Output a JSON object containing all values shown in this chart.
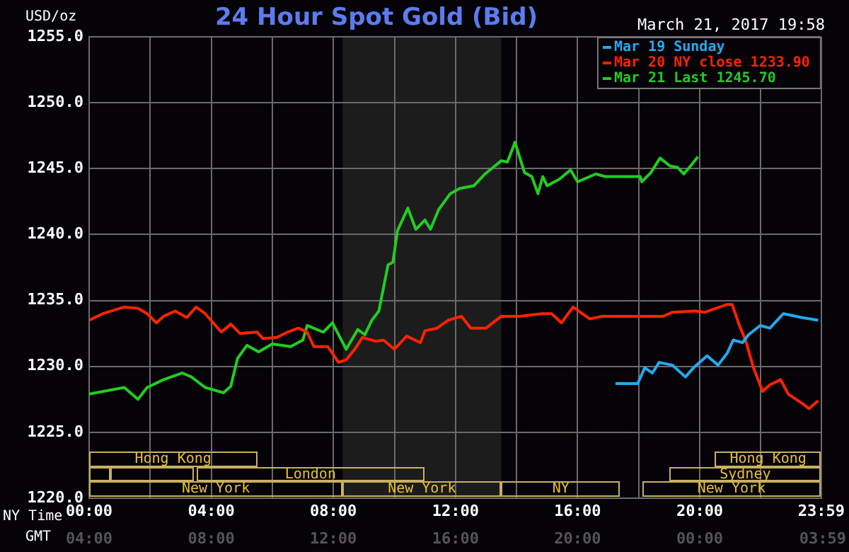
{
  "chart_data": {
    "type": "line",
    "title": "24 Hour Spot Gold (Bid)",
    "subtitle": "March 21, 2017 19:58",
    "ylabel": "USD/oz",
    "xlabel": "NY Time",
    "annotations": [
      "Hong Kong",
      "London",
      "New York",
      "New York",
      "NY",
      "Sydney",
      "Hong Kong",
      "New York",
      "GMT",
      "04:00",
      "08:00",
      "12:00",
      "16:00",
      "20:00",
      "00:00",
      "03:59"
    ],
    "xlim": [
      0,
      23.983
    ],
    "xticks": [
      {
        "value": 0,
        "label": "00:00"
      },
      {
        "value": 2,
        "label": null
      },
      {
        "value": 4,
        "label": "04:00"
      },
      {
        "value": 6,
        "label": null
      },
      {
        "value": 8,
        "label": "08:00"
      },
      {
        "value": 10,
        "label": null
      },
      {
        "value": 12,
        "label": "12:00"
      },
      {
        "value": 14,
        "label": null
      },
      {
        "value": 16,
        "label": "16:00"
      },
      {
        "value": 18,
        "label": null
      },
      {
        "value": 20,
        "label": "20:00"
      },
      {
        "value": 22,
        "label": null
      },
      {
        "value": 23.983,
        "label": "23:59"
      }
    ],
    "ylim": [
      1220,
      1255
    ],
    "yticks": [
      {
        "value": 1220,
        "label": "1220.0"
      },
      {
        "value": 1225,
        "label": "1225.0"
      },
      {
        "value": 1230,
        "label": "1230.0"
      },
      {
        "value": 1235,
        "label": "1235.0"
      },
      {
        "value": 1240,
        "label": "1240.0"
      },
      {
        "value": 1245,
        "label": "1245.0"
      },
      {
        "value": 1250,
        "label": "1250.0"
      },
      {
        "value": 1255,
        "label": "1255.0"
      }
    ],
    "grid": true,
    "legend": "top right",
    "series": [
      {
        "name": "Mar 19 Sunday",
        "color": "#22aaee",
        "x": [
          17.24,
          17.97,
          18.2,
          18.45,
          18.67,
          19.1,
          19.53,
          19.8,
          20.24,
          20.6,
          20.9,
          21.1,
          21.4,
          21.6,
          21.98,
          22.3,
          22.74,
          23.35,
          23.88
        ],
        "values": [
          1228.7,
          1228.7,
          1229.9,
          1229.5,
          1230.3,
          1230.1,
          1229.2,
          1229.9,
          1230.8,
          1230.1,
          1231.0,
          1232.0,
          1231.8,
          1232.4,
          1233.1,
          1232.9,
          1234.0,
          1233.7,
          1233.5
        ]
      },
      {
        "name": "Mar 20 NY close 1233.90",
        "color": "#ff2200",
        "x": [
          0,
          0.45,
          1.15,
          1.6,
          1.9,
          2.2,
          2.44,
          2.82,
          3.2,
          3.5,
          3.8,
          4.33,
          4.64,
          4.94,
          5.5,
          5.7,
          6.15,
          6.5,
          6.85,
          7.14,
          7.36,
          7.82,
          8.17,
          8.42,
          8.73,
          8.95,
          9.4,
          9.64,
          10.0,
          10.4,
          10.85,
          11.0,
          11.4,
          11.76,
          12.2,
          12.5,
          13.0,
          13.5,
          14.1,
          14.86,
          15.15,
          15.47,
          15.85,
          16.4,
          16.8,
          18.8,
          19.1,
          19.85,
          20.15,
          20.9,
          21.06,
          21.3,
          21.5,
          21.76,
          22.06,
          22.3,
          22.65,
          22.9,
          23.35,
          23.58,
          23.88
        ],
        "values": [
          1233.5,
          1234.0,
          1234.5,
          1234.4,
          1234.0,
          1233.3,
          1233.8,
          1234.2,
          1233.7,
          1234.5,
          1234.0,
          1232.6,
          1233.2,
          1232.5,
          1232.6,
          1232.1,
          1232.2,
          1232.6,
          1232.9,
          1232.6,
          1231.5,
          1231.5,
          1230.3,
          1230.5,
          1231.4,
          1232.2,
          1231.9,
          1232.0,
          1231.3,
          1232.3,
          1231.8,
          1232.7,
          1232.9,
          1233.5,
          1233.8,
          1232.9,
          1232.9,
          1233.8,
          1233.8,
          1234.0,
          1234.0,
          1233.3,
          1234.5,
          1233.6,
          1233.8,
          1233.8,
          1234.1,
          1234.2,
          1234.1,
          1234.7,
          1234.7,
          1233.1,
          1232.0,
          1229.9,
          1228.1,
          1228.6,
          1229.0,
          1227.9,
          1227.2,
          1226.8,
          1227.4
        ]
      },
      {
        "name": "Mar 21 Last 1245.70",
        "color": "#22cc22",
        "x": [
          0,
          1.15,
          1.6,
          1.9,
          2.44,
          3.05,
          3.35,
          3.8,
          4.4,
          4.64,
          4.86,
          5.17,
          5.55,
          6.0,
          6.6,
          7.0,
          7.14,
          7.67,
          7.97,
          8.42,
          8.8,
          9.03,
          9.26,
          9.49,
          9.79,
          9.95,
          10.1,
          10.44,
          10.7,
          11.0,
          11.18,
          11.45,
          11.83,
          12.14,
          12.6,
          12.97,
          13.5,
          13.7,
          13.95,
          14.26,
          14.5,
          14.7,
          14.86,
          15.0,
          15.4,
          15.77,
          16.0,
          16.6,
          16.9,
          18.05,
          18.1,
          18.4,
          18.7,
          19.03,
          19.27,
          19.48,
          19.7,
          19.94
        ],
        "values": [
          1227.9,
          1228.4,
          1227.5,
          1228.4,
          1229.0,
          1229.5,
          1229.2,
          1228.4,
          1228.0,
          1228.5,
          1230.6,
          1231.6,
          1231.1,
          1231.7,
          1231.5,
          1232.0,
          1233.1,
          1232.6,
          1233.3,
          1231.3,
          1232.8,
          1232.4,
          1233.5,
          1234.2,
          1237.7,
          1237.9,
          1240.3,
          1242.0,
          1240.4,
          1241.1,
          1240.4,
          1241.9,
          1243.1,
          1243.5,
          1243.7,
          1244.6,
          1245.6,
          1245.5,
          1247.0,
          1244.7,
          1244.4,
          1243.1,
          1244.4,
          1243.7,
          1244.2,
          1244.9,
          1244.0,
          1244.6,
          1244.4,
          1244.4,
          1244.0,
          1244.7,
          1245.8,
          1245.2,
          1245.1,
          1244.6,
          1245.2,
          1245.9
        ]
      }
    ],
    "bands": [
      {
        "axis": "x",
        "from": 8.3,
        "to": 13.5,
        "color": "#1c1c1c"
      }
    ]
  }
}
